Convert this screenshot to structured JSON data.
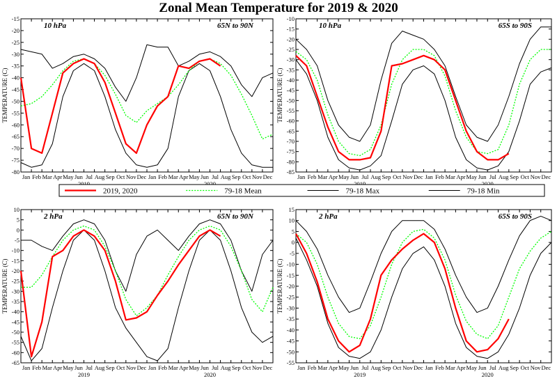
{
  "title": "Zonal Mean Temperature for 2019 & 2020",
  "colors": {
    "observed": "#ff0000",
    "mean": "#00ff00",
    "max": "#000000",
    "min": "#000000"
  },
  "legend": {
    "placement": "between-rows",
    "items": [
      {
        "label": "2019, 2020",
        "style": "solid-red"
      },
      {
        "label": "79-18 Mean",
        "style": "dotted-green"
      },
      {
        "label": "79-18 Max",
        "style": "solid-black"
      },
      {
        "label": "79-18 Min",
        "style": "solid-black"
      }
    ]
  },
  "x_axis": {
    "month_labels": [
      "Jan",
      "Feb",
      "Mar",
      "Apr",
      "May",
      "Jun",
      "Jul",
      "Aug",
      "Sep",
      "Oct",
      "Nov",
      "Dec",
      "Jan",
      "Feb",
      "Mar",
      "Apr",
      "May",
      "Jun",
      "Jul",
      "Aug",
      "Sep",
      "Oct",
      "Nov",
      "Dec"
    ],
    "year_labels": [
      "2019",
      "2020"
    ]
  },
  "chart_data": [
    {
      "type": "line",
      "level": "10 hPa",
      "region": "65N to 90N",
      "ylabel": "TEMPERATURE (C)",
      "ylim": [
        -80,
        -15
      ],
      "yticks": [
        -80,
        -75,
        -70,
        -65,
        -60,
        -55,
        -50,
        -45,
        -40,
        -35,
        -30,
        -25,
        -20,
        -15
      ],
      "x": [
        0,
        1,
        2,
        3,
        4,
        5,
        6,
        7,
        8,
        9,
        10,
        11,
        12,
        13,
        14,
        15,
        16,
        17,
        18,
        19,
        20,
        21,
        22,
        23,
        24
      ],
      "series": [
        {
          "name": "2019, 2020",
          "values": [
            -40,
            -70,
            -72,
            -55,
            -38,
            -34,
            -32,
            -34,
            -42,
            -55,
            -68,
            -72,
            -60,
            -52,
            -48,
            -35,
            -36,
            -33,
            -32,
            -35,
            null,
            null,
            null,
            null,
            null
          ]
        },
        {
          "name": "79-18 Mean",
          "values": [
            -52,
            -51,
            -48,
            -43,
            -37,
            -33,
            -32,
            -34,
            -39,
            -47,
            -56,
            -59,
            -54,
            -51,
            -48,
            -43,
            -37,
            -33,
            -32,
            -34,
            -39,
            -47,
            -56,
            -66,
            -64
          ]
        },
        {
          "name": "79-18 Max",
          "values": [
            -28,
            -29,
            -30,
            -36,
            -34,
            -31,
            -30,
            -32,
            -36,
            -44,
            -50,
            -40,
            -26,
            -27,
            -27,
            -35,
            -33,
            -30,
            -29,
            -31,
            -35,
            -43,
            -48,
            -40,
            -38
          ]
        },
        {
          "name": "79-18 Min",
          "values": [
            -76,
            -78,
            -77,
            -68,
            -48,
            -37,
            -34,
            -37,
            -48,
            -62,
            -72,
            -77,
            -78,
            -77,
            -70,
            -48,
            -37,
            -34,
            -37,
            -48,
            -62,
            -72,
            -77,
            -78,
            -78
          ]
        }
      ]
    },
    {
      "type": "line",
      "level": "10 hPa",
      "region": "65S to 90S",
      "ylabel": "TEMPERATURE (C)",
      "ylim": [
        -85,
        -10
      ],
      "yticks": [
        -85,
        -80,
        -75,
        -70,
        -65,
        -60,
        -55,
        -50,
        -45,
        -40,
        -35,
        -30,
        -25,
        -20,
        -15,
        -10
      ],
      "x": [
        0,
        1,
        2,
        3,
        4,
        5,
        6,
        7,
        8,
        9,
        10,
        11,
        12,
        13,
        14,
        15,
        16,
        17,
        18,
        19,
        20,
        21,
        22,
        23,
        24
      ],
      "series": [
        {
          "name": "2019, 2020",
          "values": [
            -28,
            -33,
            -48,
            -63,
            -75,
            -79,
            -79,
            -78,
            -65,
            -33,
            -32,
            -30,
            -28,
            -30,
            -35,
            -50,
            -65,
            -75,
            -79,
            -79,
            -76,
            null,
            null,
            null,
            null
          ]
        },
        {
          "name": "79-18 Mean",
          "values": [
            -26,
            -30,
            -40,
            -57,
            -70,
            -76,
            -77,
            -74,
            -62,
            -42,
            -30,
            -25,
            -25,
            -28,
            -38,
            -55,
            -68,
            -75,
            -76,
            -74,
            -62,
            -42,
            -30,
            -25,
            -25
          ]
        },
        {
          "name": "79-18 Max",
          "values": [
            -20,
            -25,
            -33,
            -50,
            -62,
            -68,
            -70,
            -62,
            -40,
            -22,
            -16,
            -18,
            -20,
            -25,
            -33,
            -48,
            -62,
            -68,
            -70,
            -62,
            -48,
            -32,
            -20,
            -14,
            -14
          ]
        },
        {
          "name": "79-18 Min",
          "values": [
            -30,
            -37,
            -50,
            -68,
            -79,
            -83,
            -84,
            -82,
            -77,
            -60,
            -42,
            -35,
            -33,
            -37,
            -50,
            -68,
            -79,
            -83,
            -84,
            -82,
            -75,
            -60,
            -42,
            -36,
            -34
          ]
        }
      ]
    },
    {
      "type": "line",
      "level": "2 hPa",
      "region": "65N to 90N",
      "ylabel": "TEMPERATURE (C)",
      "ylim": [
        -65,
        10
      ],
      "yticks": [
        -65,
        -60,
        -55,
        -50,
        -45,
        -40,
        -35,
        -30,
        -25,
        -20,
        -15,
        -10,
        -5,
        0,
        5,
        10
      ],
      "x": [
        0,
        1,
        2,
        3,
        4,
        5,
        6,
        7,
        8,
        9,
        10,
        11,
        12,
        13,
        14,
        15,
        16,
        17,
        18,
        19,
        20,
        21,
        22,
        23,
        24
      ],
      "series": [
        {
          "name": "2019, 2020",
          "values": [
            -20,
            -62,
            -45,
            -13,
            -10,
            -3,
            0,
            -3,
            -10,
            -25,
            -44,
            -43,
            -40,
            -32,
            -25,
            -17,
            -10,
            -3,
            0,
            -3,
            null,
            null,
            null,
            null,
            null
          ]
        },
        {
          "name": "79-18 Mean",
          "values": [
            -28,
            -28,
            -22,
            -13,
            -5,
            0,
            2,
            0,
            -8,
            -20,
            -34,
            -42,
            -38,
            -32,
            -22,
            -13,
            -5,
            0,
            2,
            0,
            -8,
            -20,
            -34,
            -40,
            -28
          ]
        },
        {
          "name": "79-18 Max",
          "values": [
            -5,
            -5,
            -8,
            -10,
            -3,
            3,
            5,
            3,
            -5,
            -20,
            -30,
            -12,
            -3,
            0,
            -5,
            -10,
            -3,
            3,
            5,
            3,
            -5,
            -20,
            -30,
            -12,
            -5
          ]
        },
        {
          "name": "79-18 Min",
          "values": [
            -52,
            -64,
            -58,
            -38,
            -20,
            -5,
            0,
            -5,
            -20,
            -38,
            -48,
            -55,
            -62,
            -64,
            -58,
            -38,
            -20,
            -5,
            0,
            -5,
            -20,
            -38,
            -50,
            -55,
            -52
          ]
        }
      ]
    },
    {
      "type": "line",
      "level": "2 hPa",
      "region": "65S to 90S",
      "ylabel": "TEMPERATURE (C)",
      "ylim": [
        -55,
        15
      ],
      "yticks": [
        -55,
        -50,
        -45,
        -40,
        -35,
        -30,
        -25,
        -20,
        -15,
        -10,
        -5,
        0,
        5,
        10,
        15
      ],
      "x": [
        0,
        1,
        2,
        3,
        4,
        5,
        6,
        7,
        8,
        9,
        10,
        11,
        12,
        13,
        14,
        15,
        16,
        17,
        18,
        19,
        20,
        21,
        22,
        23,
        24
      ],
      "series": [
        {
          "name": "2019, 2020",
          "values": [
            4,
            -5,
            -18,
            -35,
            -45,
            -50,
            -47,
            -35,
            -15,
            -8,
            -3,
            1,
            4,
            0,
            -12,
            -30,
            -45,
            -50,
            -49,
            -44,
            -35,
            null,
            null,
            null,
            null
          ]
        },
        {
          "name": "79-18 Mean",
          "values": [
            4,
            0,
            -10,
            -25,
            -37,
            -43,
            -44,
            -38,
            -25,
            -10,
            0,
            5,
            6,
            2,
            -8,
            -24,
            -36,
            -42,
            -44,
            -38,
            -25,
            -12,
            -4,
            2,
            5
          ]
        },
        {
          "name": "79-18 Max",
          "values": [
            10,
            5,
            -3,
            -15,
            -25,
            -32,
            -30,
            -18,
            -5,
            5,
            10,
            10,
            10,
            6,
            -3,
            -15,
            -25,
            -32,
            -30,
            -20,
            -8,
            3,
            10,
            12,
            10
          ]
        },
        {
          "name": "79-18 Min",
          "values": [
            2,
            -8,
            -20,
            -37,
            -48,
            -52,
            -53,
            -50,
            -40,
            -25,
            -12,
            -5,
            -2,
            -8,
            -20,
            -37,
            -48,
            -52,
            -53,
            -50,
            -42,
            -30,
            -15,
            -5,
            0
          ]
        }
      ]
    }
  ]
}
